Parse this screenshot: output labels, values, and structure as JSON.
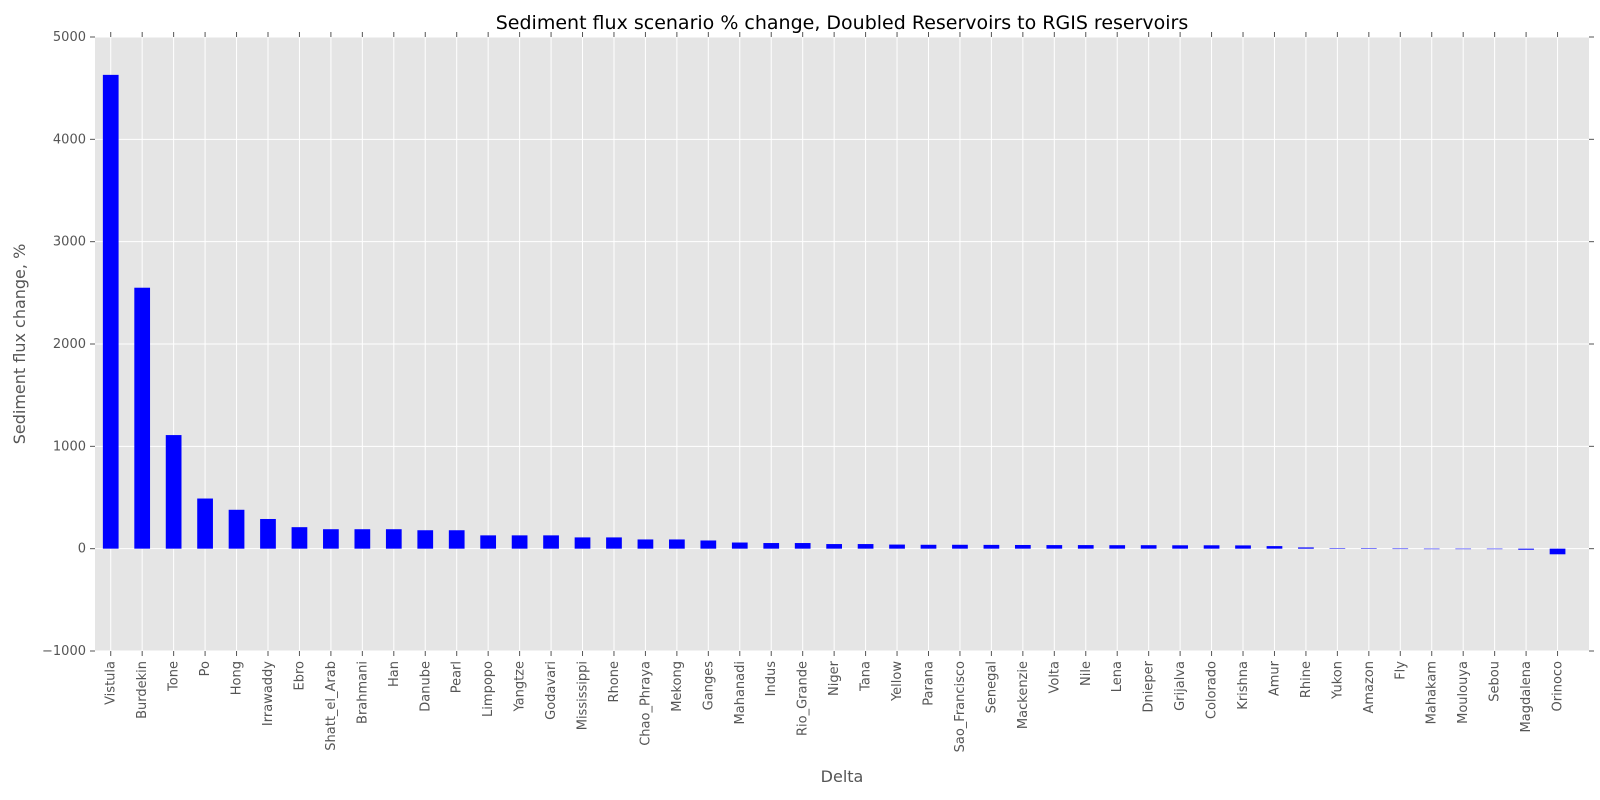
{
  "chart_data": {
    "type": "bar",
    "title": "Sediment flux scenario % change, Doubled Reservoirs to RGIS reservoirs",
    "xlabel": "Delta",
    "ylabel": "Sediment flux change, %",
    "ylim": [
      -1000,
      5000
    ],
    "yticks": [
      -1000,
      0,
      1000,
      2000,
      3000,
      4000,
      5000
    ],
    "grid": true,
    "bar_color": "#0000ff",
    "categories": [
      "Vistula",
      "Burdekin",
      "Tone",
      "Po",
      "Hong",
      "Irrawaddy",
      "Ebro",
      "Shatt_el_Arab",
      "Brahmani",
      "Han",
      "Danube",
      "Pearl",
      "Limpopo",
      "Yangtze",
      "Godavari",
      "Mississippi",
      "Rhone",
      "Chao_Phraya",
      "Mekong",
      "Ganges",
      "Mahanadi",
      "Indus",
      "Rio_Grande",
      "Niger",
      "Tana",
      "Yellow",
      "Parana",
      "Sao_Francisco",
      "Senegal",
      "Mackenzie",
      "Volta",
      "Nile",
      "Lena",
      "Dnieper",
      "Grijalva",
      "Colorado",
      "Krishna",
      "Amur",
      "Rhine",
      "Yukon",
      "Amazon",
      "Fly",
      "Mahakam",
      "Moulouya",
      "Sebou",
      "Magdalena",
      "Orinoco"
    ],
    "values": [
      4630,
      2550,
      1110,
      490,
      380,
      290,
      210,
      190,
      190,
      190,
      180,
      180,
      130,
      130,
      130,
      110,
      110,
      90,
      90,
      80,
      60,
      55,
      55,
      45,
      45,
      40,
      38,
      38,
      37,
      36,
      35,
      35,
      34,
      34,
      33,
      33,
      32,
      25,
      12,
      3,
      2,
      1,
      -1,
      -2,
      -2,
      -10,
      -55
    ]
  }
}
